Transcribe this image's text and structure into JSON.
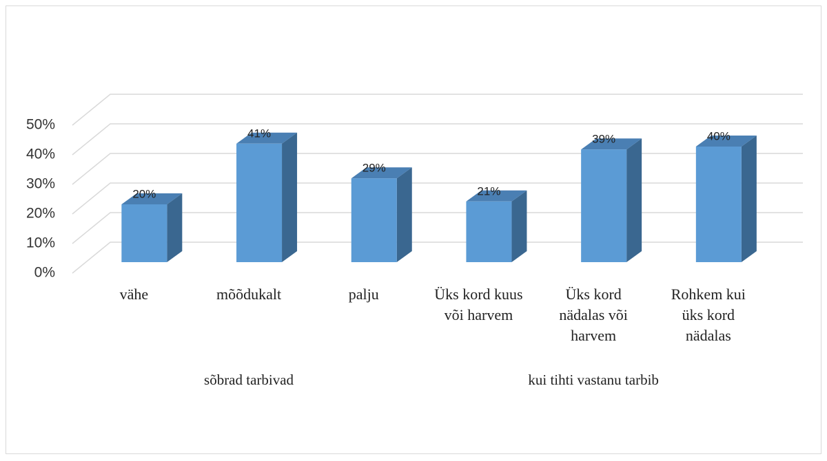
{
  "chart_data": {
    "type": "bar",
    "categories": [
      "vähe",
      "mõõdukalt",
      "palju",
      "Üks kord kuus või harvem",
      "Üks kord nädalas või harvem",
      "Rohkem kui üks kord nädalas"
    ],
    "groups": [
      "sõbrad tarbivad",
      "kui tihti vastanu tarbib"
    ],
    "values": [
      20,
      41,
      29,
      21,
      39,
      40
    ],
    "value_labels": [
      "20%",
      "41%",
      "29%",
      "21%",
      "39%",
      "40%"
    ],
    "color": "#5b9bd5",
    "ylim": [
      0,
      50
    ],
    "yticks": [
      {
        "value": 0,
        "label": "0%"
      },
      {
        "value": 10,
        "label": "10%"
      },
      {
        "value": 20,
        "label": "20%"
      },
      {
        "value": 30,
        "label": "30%"
      },
      {
        "value": 40,
        "label": "40%"
      },
      {
        "value": 50,
        "label": "50%"
      }
    ],
    "grid": true
  }
}
